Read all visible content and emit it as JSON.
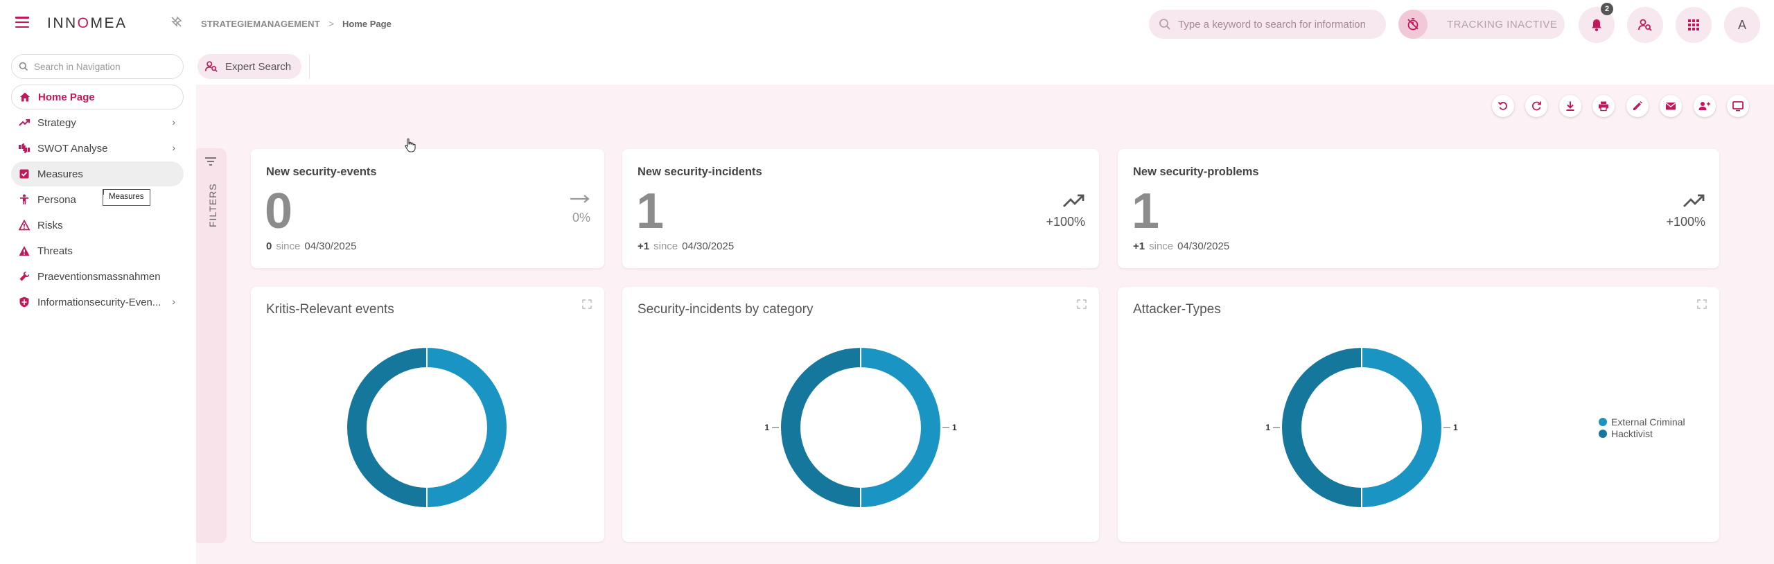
{
  "header": {
    "logo": "INNOMEA",
    "breadcrumb": {
      "root": "STRATEGIEMANAGEMENT",
      "separator": ">",
      "current": "Home Page"
    },
    "search_placeholder": "Type a keyword to search for information",
    "tracking_label": "TRACKING INACTIVE",
    "notification_count": "2",
    "avatar_initial": "A"
  },
  "sidebar": {
    "search_placeholder": "Search in Navigation",
    "items": [
      {
        "label": "Home Page",
        "icon": "home-icon",
        "active": true
      },
      {
        "label": "Strategy",
        "icon": "trending-up-icon",
        "chevron": true
      },
      {
        "label": "SWOT Analyse",
        "icon": "thumbs-icon",
        "chevron": true
      },
      {
        "label": "Measures",
        "icon": "checkbox-icon",
        "hover": true
      },
      {
        "label": "Persona",
        "icon": "person-icon"
      },
      {
        "label": "Risks",
        "icon": "warning-outline-icon"
      },
      {
        "label": "Threats",
        "icon": "warning-icon"
      },
      {
        "label": "Praeventionsmassnahmen",
        "icon": "wrench-icon"
      },
      {
        "label": "Informationsecurity-Even...",
        "icon": "shield-icon",
        "chevron": true
      }
    ],
    "tooltip": "Measures"
  },
  "expert_search": {
    "label": "Expert Search"
  },
  "filters": {
    "label": "FILTERS"
  },
  "toolbar": [
    "undo-icon",
    "refresh-icon",
    "download-icon",
    "print-icon",
    "edit-icon",
    "mail-icon",
    "share-users-icon",
    "monitor-icon"
  ],
  "kpis": [
    {
      "title": "New security-events",
      "value": "0",
      "delta": "0",
      "since": "since",
      "date": "04/30/2025",
      "trend": "flat",
      "pct": "0%"
    },
    {
      "title": "New security-incidents",
      "value": "1",
      "delta": "+1",
      "since": "since",
      "date": "04/30/2025",
      "trend": "up",
      "pct": "+100%"
    },
    {
      "title": "New security-problems",
      "value": "1",
      "delta": "+1",
      "since": "since",
      "date": "04/30/2025",
      "trend": "up",
      "pct": "+100%"
    }
  ],
  "colors": {
    "accent": "#c2185b",
    "series_a": "#1a94c2",
    "series_b": "#15779b"
  },
  "chart_data": [
    {
      "type": "pie",
      "title": "Kritis-Relevant events",
      "slices": [
        {
          "label": "",
          "value": 1
        },
        {
          "label": "",
          "value": 1
        }
      ],
      "data_labels": false
    },
    {
      "type": "pie",
      "title": "Security-incidents by category",
      "slices": [
        {
          "label": "",
          "value": 1
        },
        {
          "label": "",
          "value": 1
        }
      ],
      "data_labels": true
    },
    {
      "type": "pie",
      "title": "Attacker-Types",
      "slices": [
        {
          "label": "External Criminal",
          "value": 1
        },
        {
          "label": "Hacktivist",
          "value": 1
        }
      ],
      "data_labels": true,
      "legend": "right"
    }
  ]
}
